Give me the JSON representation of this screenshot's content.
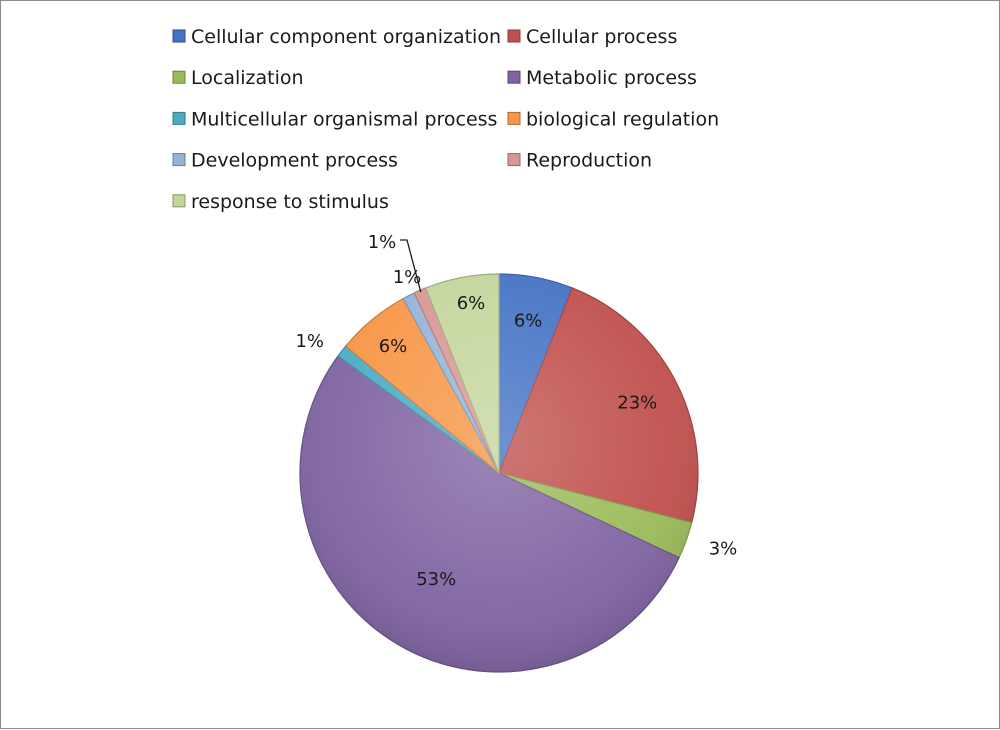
{
  "chart_data": {
    "type": "pie",
    "legend_position": "top",
    "slices": [
      {
        "label": "Cellular component organization",
        "value": 6,
        "display": "6%",
        "color": "#4472c4"
      },
      {
        "label": "Cellular process",
        "value": 23,
        "display": "23%",
        "color": "#c0504d"
      },
      {
        "label": "Localization",
        "value": 3,
        "display": "3%",
        "color": "#9bbb59"
      },
      {
        "label": "Metabolic process",
        "value": 53,
        "display": "53%",
        "color": "#8064a2"
      },
      {
        "label": "Multicellular organismal process",
        "value": 1,
        "display": "1%",
        "color": "#4bacc6"
      },
      {
        "label": "biological regulation",
        "value": 6,
        "display": "6%",
        "color": "#f79646"
      },
      {
        "label": "Development process",
        "value": 1,
        "display": "1%",
        "color": "#95b3d7"
      },
      {
        "label": "Reproduction",
        "value": 1,
        "display": "1%",
        "color": "#d99694"
      },
      {
        "label": "response to stimulus",
        "value": 6,
        "display": "6%",
        "color": "#c3d69b"
      }
    ]
  }
}
